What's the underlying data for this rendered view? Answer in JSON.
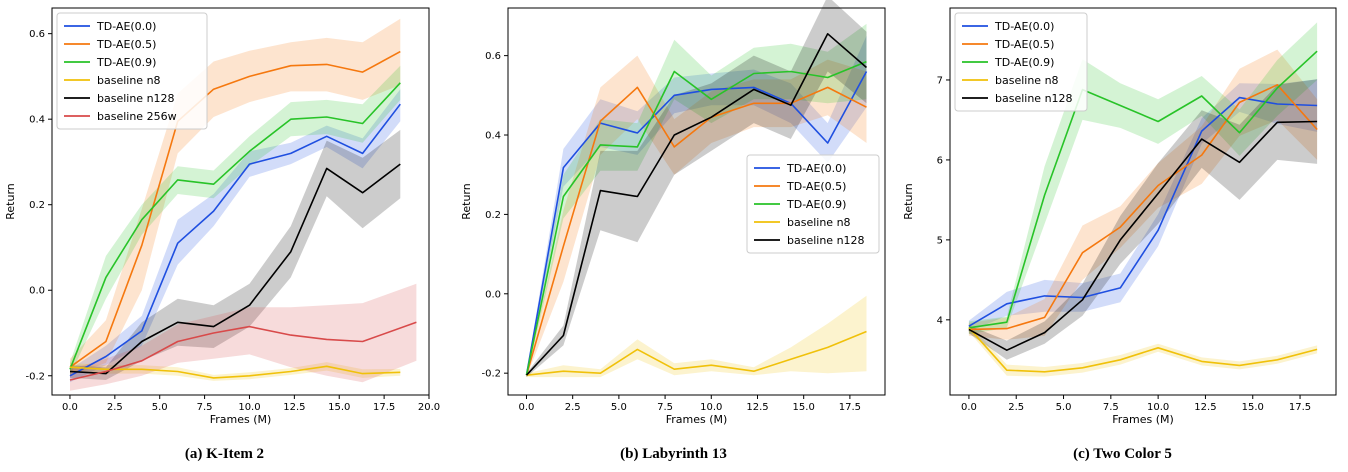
{
  "colors": {
    "TD-AE(0.0)": "#1f4fe0",
    "TD-AE(0.5)": "#f5780f",
    "TD-AE(0.9)": "#28c328",
    "baseline n8": "#f0c10a",
    "baseline n128": "#000000",
    "baseline 256w": "#d84a4a"
  },
  "chart_data": [
    {
      "type": "line",
      "caption": "(a) K-Item 2",
      "xlabel": "Frames (M)",
      "ylabel": "Return",
      "xlim": [
        -1,
        20
      ],
      "ylim": [
        -0.245,
        0.66
      ],
      "xticks": [
        "0.0",
        "2.5",
        "5.0",
        "7.5",
        "10.0",
        "12.5",
        "15.0",
        "17.5",
        "20.0"
      ],
      "yticks": [
        "-0.2",
        "0.0",
        "0.2",
        "0.4",
        "0.6"
      ],
      "legend_position": "top-left",
      "grid": false,
      "series": [
        {
          "name": "TD-AE(0.0)",
          "x": [
            0,
            2,
            4,
            6,
            8,
            10,
            12.3,
            14.3,
            16.3,
            18.4
          ],
          "y": [
            -0.2,
            -0.155,
            -0.095,
            0.11,
            0.185,
            0.295,
            0.32,
            0.36,
            0.32,
            0.435
          ],
          "lower": [
            -0.215,
            -0.175,
            -0.13,
            0.06,
            0.15,
            0.265,
            0.295,
            0.335,
            0.285,
            0.395
          ],
          "upper": [
            -0.185,
            -0.13,
            -0.06,
            0.165,
            0.225,
            0.325,
            0.345,
            0.385,
            0.355,
            0.47
          ]
        },
        {
          "name": "TD-AE(0.5)",
          "x": [
            0,
            2,
            4,
            6,
            8,
            10,
            12.3,
            14.3,
            16.3,
            18.4
          ],
          "y": [
            -0.18,
            -0.12,
            0.105,
            0.395,
            0.47,
            0.5,
            0.525,
            0.528,
            0.51,
            0.558
          ],
          "lower": [
            -0.2,
            -0.17,
            0.0,
            0.32,
            0.405,
            0.44,
            0.465,
            0.465,
            0.445,
            0.48
          ],
          "upper": [
            -0.16,
            -0.07,
            0.19,
            0.46,
            0.535,
            0.56,
            0.58,
            0.59,
            0.58,
            0.635
          ]
        },
        {
          "name": "TD-AE(0.9)",
          "x": [
            0,
            2,
            4,
            6,
            8,
            10,
            12.3,
            14.3,
            16.3,
            18.4
          ],
          "y": [
            -0.185,
            0.03,
            0.165,
            0.258,
            0.248,
            0.325,
            0.4,
            0.405,
            0.39,
            0.485
          ],
          "lower": [
            -0.2,
            -0.02,
            0.13,
            0.225,
            0.215,
            0.29,
            0.36,
            0.365,
            0.345,
            0.445
          ],
          "upper": [
            -0.17,
            0.08,
            0.2,
            0.29,
            0.28,
            0.36,
            0.44,
            0.445,
            0.435,
            0.525
          ]
        },
        {
          "name": "baseline n8",
          "x": [
            0,
            2,
            4,
            6,
            8,
            10,
            12.3,
            14.3,
            16.3,
            18.4
          ],
          "y": [
            -0.18,
            -0.185,
            -0.185,
            -0.19,
            -0.205,
            -0.2,
            -0.19,
            -0.178,
            -0.195,
            -0.192
          ],
          "lower": [
            -0.19,
            -0.195,
            -0.195,
            -0.2,
            -0.212,
            -0.208,
            -0.198,
            -0.188,
            -0.205,
            -0.2
          ],
          "upper": [
            -0.17,
            -0.175,
            -0.175,
            -0.18,
            -0.198,
            -0.192,
            -0.182,
            -0.168,
            -0.185,
            -0.184
          ]
        },
        {
          "name": "baseline n128",
          "x": [
            0,
            2,
            4,
            6,
            8,
            10,
            12.3,
            14.3,
            16.3,
            18.4
          ],
          "y": [
            -0.19,
            -0.195,
            -0.12,
            -0.075,
            -0.085,
            -0.035,
            0.09,
            0.285,
            0.228,
            0.295
          ],
          "lower": [
            -0.205,
            -0.21,
            -0.165,
            -0.13,
            -0.135,
            -0.085,
            0.03,
            0.22,
            0.145,
            0.215
          ],
          "upper": [
            -0.175,
            -0.18,
            -0.075,
            -0.02,
            -0.035,
            0.015,
            0.15,
            0.35,
            0.31,
            0.375
          ]
        },
        {
          "name": "baseline 256w",
          "x": [
            0,
            2,
            4,
            6,
            8,
            10,
            12.3,
            14.3,
            16.3,
            19.3
          ],
          "y": [
            -0.21,
            -0.19,
            -0.165,
            -0.12,
            -0.1,
            -0.085,
            -0.105,
            -0.115,
            -0.12,
            -0.075
          ],
          "lower": [
            -0.235,
            -0.22,
            -0.2,
            -0.17,
            -0.16,
            -0.15,
            -0.18,
            -0.2,
            -0.215,
            -0.165
          ],
          "upper": [
            -0.185,
            -0.16,
            -0.13,
            -0.08,
            -0.06,
            -0.04,
            -0.04,
            -0.035,
            -0.03,
            0.015
          ]
        }
      ]
    },
    {
      "type": "line",
      "caption": "(b) Labyrinth 13",
      "xlabel": "Frames (M)",
      "ylabel": "Return",
      "xlim": [
        -1,
        19.4
      ],
      "ylim": [
        -0.255,
        0.72
      ],
      "xticks": [
        "0.0",
        "2.5",
        "5.0",
        "7.5",
        "10.0",
        "12.5",
        "15.0",
        "17.5"
      ],
      "yticks": [
        "-0.2",
        "0.0",
        "0.2",
        "0.4",
        "0.6"
      ],
      "legend_position": "center-right",
      "grid": false,
      "series": [
        {
          "name": "TD-AE(0.0)",
          "x": [
            0,
            2,
            4,
            6,
            8,
            10,
            12.3,
            14.3,
            16.3,
            18.4
          ],
          "y": [
            -0.205,
            0.318,
            0.43,
            0.405,
            0.5,
            0.515,
            0.52,
            0.48,
            0.38,
            0.56
          ],
          "lower": [
            -0.21,
            0.27,
            0.37,
            0.35,
            0.455,
            0.475,
            0.475,
            0.43,
            0.33,
            0.47
          ],
          "upper": [
            -0.2,
            0.365,
            0.49,
            0.46,
            0.545,
            0.555,
            0.565,
            0.53,
            0.43,
            0.65
          ]
        },
        {
          "name": "TD-AE(0.5)",
          "x": [
            0,
            2,
            4,
            6,
            8,
            10,
            12.3,
            14.3,
            16.3,
            18.4
          ],
          "y": [
            -0.205,
            0.12,
            0.435,
            0.52,
            0.37,
            0.445,
            0.48,
            0.48,
            0.52,
            0.47
          ],
          "lower": [
            -0.21,
            0.03,
            0.35,
            0.44,
            0.3,
            0.38,
            0.42,
            0.42,
            0.45,
            0.38
          ],
          "upper": [
            -0.2,
            0.21,
            0.52,
            0.6,
            0.44,
            0.51,
            0.54,
            0.54,
            0.59,
            0.56
          ]
        },
        {
          "name": "TD-AE(0.9)",
          "x": [
            0,
            2,
            4,
            6,
            8,
            10,
            12.3,
            14.3,
            16.3,
            18.4
          ],
          "y": [
            -0.205,
            0.245,
            0.375,
            0.37,
            0.56,
            0.49,
            0.555,
            0.56,
            0.545,
            0.585
          ],
          "lower": [
            -0.21,
            0.19,
            0.31,
            0.31,
            0.49,
            0.43,
            0.49,
            0.49,
            0.48,
            0.49
          ],
          "upper": [
            -0.2,
            0.3,
            0.44,
            0.43,
            0.64,
            0.55,
            0.62,
            0.63,
            0.61,
            0.68
          ]
        },
        {
          "name": "baseline n8",
          "x": [
            0,
            2,
            4,
            6,
            8,
            10,
            12.3,
            14.3,
            16.3,
            18.4
          ],
          "y": [
            -0.205,
            -0.195,
            -0.2,
            -0.14,
            -0.19,
            -0.18,
            -0.195,
            -0.165,
            -0.135,
            -0.095
          ],
          "lower": [
            -0.21,
            -0.21,
            -0.21,
            -0.165,
            -0.205,
            -0.195,
            -0.205,
            -0.195,
            -0.2,
            -0.195
          ],
          "upper": [
            -0.2,
            -0.18,
            -0.19,
            -0.115,
            -0.175,
            -0.165,
            -0.185,
            -0.135,
            -0.075,
            -0.005
          ]
        },
        {
          "name": "baseline n128",
          "x": [
            0,
            2,
            4,
            6,
            8,
            10,
            12.3,
            14.3,
            16.3,
            18.4
          ],
          "y": [
            -0.205,
            -0.105,
            0.26,
            0.245,
            0.4,
            0.445,
            0.515,
            0.475,
            0.655,
            0.57
          ],
          "lower": [
            -0.21,
            -0.13,
            0.16,
            0.13,
            0.3,
            0.36,
            0.43,
            0.39,
            0.56,
            0.48
          ],
          "upper": [
            -0.2,
            -0.08,
            0.36,
            0.36,
            0.5,
            0.53,
            0.6,
            0.56,
            0.75,
            0.66
          ]
        }
      ]
    },
    {
      "type": "line",
      "caption": "(c) Two Color 5",
      "xlabel": "Frames (M)",
      "ylabel": "Return",
      "xlim": [
        -1,
        19.4
      ],
      "ylim": [
        3.06,
        7.9
      ],
      "xticks": [
        "0.0",
        "2.5",
        "5.0",
        "7.5",
        "10.0",
        "12.5",
        "15.0",
        "17.5"
      ],
      "yticks": [
        "4",
        "5",
        "6",
        "7"
      ],
      "legend_position": "top-left",
      "grid": false,
      "series": [
        {
          "name": "TD-AE(0.0)",
          "x": [
            0,
            2,
            4,
            6,
            8,
            10,
            12.3,
            14.3,
            16.3,
            18.4
          ],
          "y": [
            3.92,
            4.2,
            4.3,
            4.28,
            4.4,
            5.12,
            6.36,
            6.78,
            6.7,
            6.68
          ],
          "lower": [
            3.85,
            4.05,
            4.1,
            4.1,
            4.22,
            4.92,
            6.2,
            6.6,
            6.45,
            6.35
          ],
          "upper": [
            3.99,
            4.35,
            4.5,
            4.46,
            4.58,
            5.32,
            6.52,
            6.96,
            6.95,
            7.01
          ]
        },
        {
          "name": "TD-AE(0.5)",
          "x": [
            0,
            2,
            4,
            6,
            8,
            10,
            12.3,
            14.3,
            16.3,
            18.4
          ],
          "y": [
            3.88,
            3.89,
            4.03,
            4.84,
            5.16,
            5.68,
            6.06,
            6.72,
            6.94,
            6.38
          ],
          "lower": [
            3.8,
            3.75,
            3.8,
            4.5,
            4.9,
            5.4,
            5.7,
            6.3,
            6.5,
            6.0
          ],
          "upper": [
            3.96,
            4.03,
            4.26,
            5.18,
            5.42,
            5.96,
            6.42,
            7.14,
            7.38,
            6.76
          ]
        },
        {
          "name": "TD-AE(0.9)",
          "x": [
            0,
            2,
            4,
            6,
            8,
            10,
            12.3,
            14.3,
            16.3,
            18.4
          ],
          "y": [
            3.9,
            3.97,
            5.56,
            6.88,
            6.68,
            6.48,
            6.8,
            6.34,
            6.9,
            7.36
          ],
          "lower": [
            3.82,
            3.9,
            5.2,
            6.5,
            6.4,
            6.2,
            6.55,
            6.05,
            6.55,
            7.0
          ],
          "upper": [
            3.98,
            4.04,
            5.92,
            7.26,
            6.96,
            6.76,
            7.05,
            6.63,
            7.25,
            7.72
          ]
        },
        {
          "name": "baseline n8",
          "x": [
            0,
            2,
            4,
            6,
            8,
            10,
            12.3,
            14.3,
            16.3,
            18.4
          ],
          "y": [
            3.9,
            3.37,
            3.35,
            3.4,
            3.5,
            3.65,
            3.48,
            3.43,
            3.5,
            3.63
          ],
          "lower": [
            3.85,
            3.3,
            3.29,
            3.34,
            3.44,
            3.6,
            3.43,
            3.38,
            3.45,
            3.58
          ],
          "upper": [
            3.95,
            3.44,
            3.41,
            3.46,
            3.56,
            3.7,
            3.53,
            3.48,
            3.55,
            3.68
          ]
        },
        {
          "name": "baseline n128",
          "x": [
            0,
            2,
            4,
            6,
            8,
            10,
            12.3,
            14.3,
            16.3,
            18.4
          ],
          "y": [
            3.88,
            3.62,
            3.84,
            4.25,
            5.0,
            5.58,
            6.26,
            5.97,
            6.47,
            6.48
          ],
          "lower": [
            3.83,
            3.5,
            3.7,
            4.05,
            4.7,
            5.2,
            5.9,
            5.5,
            6.0,
            5.95
          ],
          "upper": [
            3.93,
            3.74,
            3.98,
            4.45,
            5.3,
            5.96,
            6.62,
            6.44,
            6.94,
            7.01
          ]
        }
      ]
    }
  ]
}
